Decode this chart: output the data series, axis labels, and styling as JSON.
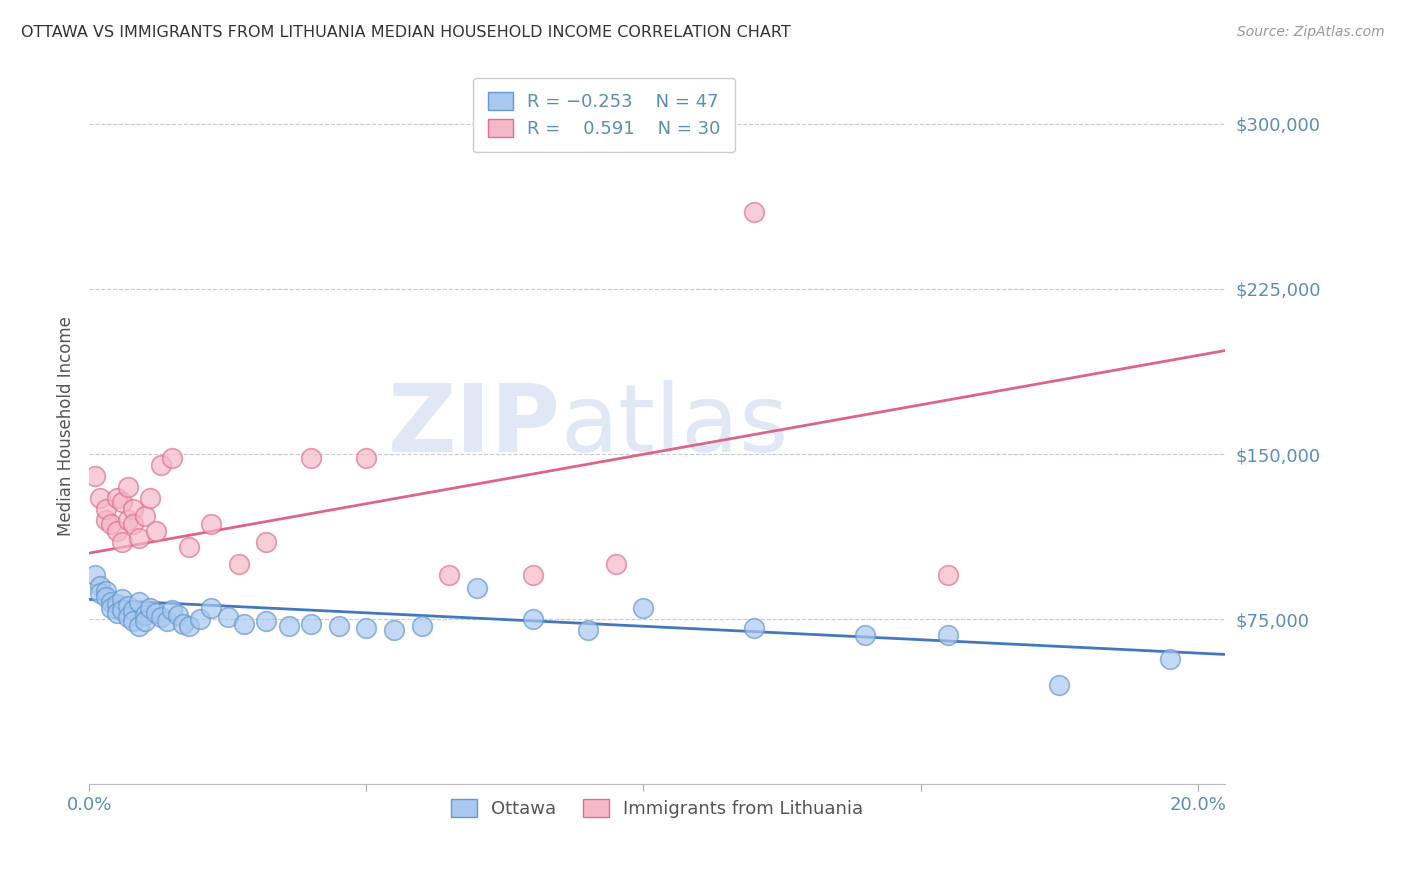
{
  "title": "OTTAWA VS IMMIGRANTS FROM LITHUANIA MEDIAN HOUSEHOLD INCOME CORRELATION CHART",
  "source": "Source: ZipAtlas.com",
  "ylabel": "Median Household Income",
  "xlim": [
    0.0,
    0.205
  ],
  "ylim": [
    0,
    325000
  ],
  "yticks": [
    0,
    75000,
    150000,
    225000,
    300000
  ],
  "ytick_labels": [
    "",
    "$75,000",
    "$150,000",
    "$225,000",
    "$300,000"
  ],
  "xticks": [
    0.0,
    0.05,
    0.1,
    0.15,
    0.2
  ],
  "xtick_labels": [
    "0.0%",
    "",
    "",
    "",
    "20.0%"
  ],
  "watermark": "ZIPatlas",
  "ottawa_color": "#A8C8F0",
  "ottawa_edge_color": "#6699CC",
  "lithuania_color": "#F5B8C8",
  "lithuania_edge_color": "#E07090",
  "ottawa_line_color": "#4477BB",
  "lithuania_line_color": "#DD6688",
  "title_color": "#333333",
  "axis_color": "#5B8DB8",
  "grid_color": "#C8C8D8",
  "ottawa_scatter_x": [
    0.001,
    0.002,
    0.002,
    0.003,
    0.003,
    0.004,
    0.004,
    0.005,
    0.005,
    0.006,
    0.006,
    0.007,
    0.007,
    0.008,
    0.008,
    0.009,
    0.009,
    0.01,
    0.01,
    0.011,
    0.012,
    0.013,
    0.014,
    0.015,
    0.016,
    0.017,
    0.018,
    0.02,
    0.022,
    0.025,
    0.028,
    0.032,
    0.036,
    0.04,
    0.045,
    0.05,
    0.055,
    0.06,
    0.07,
    0.08,
    0.09,
    0.1,
    0.12,
    0.14,
    0.155,
    0.175,
    0.195
  ],
  "ottawa_scatter_y": [
    95000,
    90000,
    87000,
    88000,
    85000,
    83000,
    80000,
    82000,
    78000,
    84000,
    79000,
    81000,
    76000,
    79000,
    74000,
    83000,
    72000,
    77000,
    74000,
    80000,
    78000,
    76000,
    74000,
    79000,
    77000,
    73000,
    72000,
    75000,
    80000,
    76000,
    73000,
    74000,
    72000,
    73000,
    72000,
    71000,
    70000,
    72000,
    89000,
    75000,
    70000,
    80000,
    71000,
    68000,
    68000,
    45000,
    57000
  ],
  "lithuania_scatter_x": [
    0.001,
    0.002,
    0.003,
    0.003,
    0.004,
    0.005,
    0.005,
    0.006,
    0.006,
    0.007,
    0.007,
    0.008,
    0.008,
    0.009,
    0.01,
    0.011,
    0.012,
    0.013,
    0.015,
    0.018,
    0.022,
    0.027,
    0.032,
    0.04,
    0.05,
    0.065,
    0.08,
    0.095,
    0.12,
    0.155
  ],
  "lithuania_scatter_y": [
    140000,
    130000,
    120000,
    125000,
    118000,
    130000,
    115000,
    128000,
    110000,
    135000,
    120000,
    125000,
    118000,
    112000,
    122000,
    130000,
    115000,
    145000,
    148000,
    108000,
    118000,
    100000,
    110000,
    148000,
    148000,
    95000,
    95000,
    100000,
    260000,
    95000
  ],
  "ottawa_trendline_x": [
    0.0,
    0.205
  ],
  "ottawa_trendline_y": [
    84000,
    59000
  ],
  "lithuania_trendline_x": [
    0.0,
    0.205
  ],
  "lithuania_trendline_y": [
    105000,
    197000
  ]
}
